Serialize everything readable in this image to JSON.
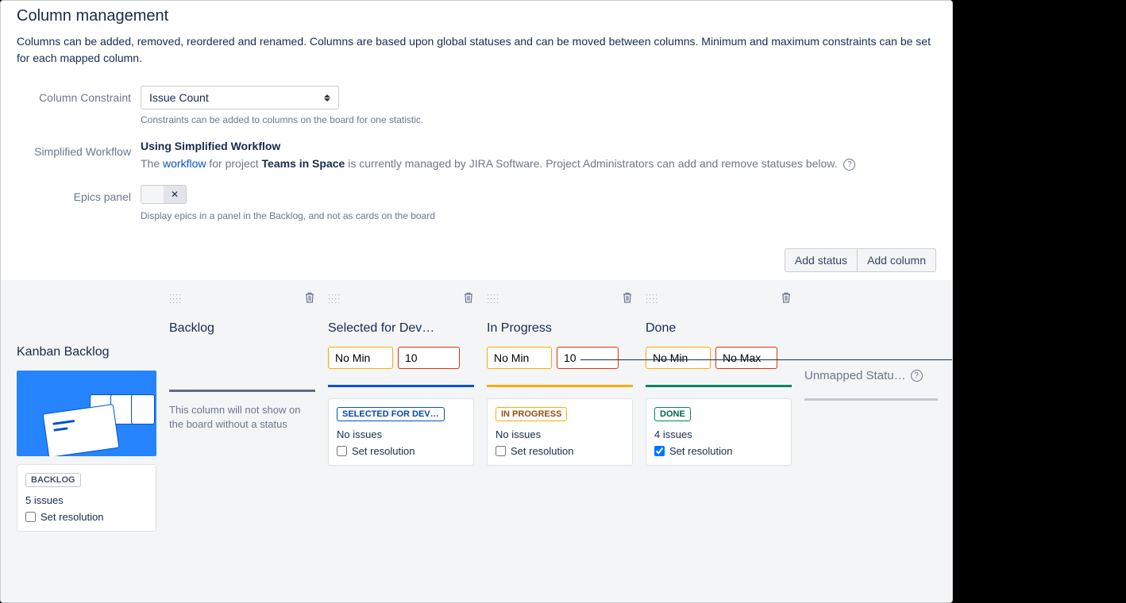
{
  "header": {
    "title": "Column management",
    "description": "Columns can be added, removed, reordered and renamed. Columns are based upon global statuses and can be moved between columns. Minimum and maximum constraints can be set for each mapped column."
  },
  "form": {
    "constraint_label": "Column Constraint",
    "constraint_value": "Issue Count",
    "constraint_hint": "Constraints can be added to columns on the board for one statistic.",
    "workflow_label": "Simplified Workflow",
    "workflow_title": "Using Simplified Workflow",
    "workflow_desc_pre": "The ",
    "workflow_link": "workflow",
    "workflow_desc_mid": " for project ",
    "workflow_project": "Teams in Space",
    "workflow_desc_post": " is currently managed by JIRA Software. Project Administrators can add and remove statuses below.",
    "epics_label": "Epics panel",
    "epics_hint": "Display epics in a panel in the Backlog, and not as cards on the board"
  },
  "actions": {
    "add_status": "Add status",
    "add_column": "Add column"
  },
  "kanban": {
    "title": "Kanban Backlog",
    "status_label": "BACKLOG",
    "issue_count": "5 issues",
    "set_resolution": "Set resolution",
    "resolution_checked": false
  },
  "columns": [
    {
      "title": "Backlog",
      "min": null,
      "max": null,
      "divider_color": "#5e6c84",
      "note": "This column will not show on the board without a status",
      "status": null
    },
    {
      "title": "Selected for Dev…",
      "min": "No Min",
      "max": "10",
      "divider_color": "#0052cc",
      "note": null,
      "status": {
        "label": "SELECTED FOR DEV…",
        "lozenge_class": "lozenge-blue",
        "issue_count": "No issues",
        "set_resolution": "Set resolution",
        "resolution_checked": false
      }
    },
    {
      "title": "In Progress",
      "min": "No Min",
      "max": "10",
      "divider_color": "#ffab00",
      "note": null,
      "status": {
        "label": "IN PROGRESS",
        "lozenge_class": "lozenge-yellow",
        "issue_count": "No issues",
        "set_resolution": "Set resolution",
        "resolution_checked": false
      }
    },
    {
      "title": "Done",
      "min": "No Min",
      "max": "No Max",
      "divider_color": "#00875a",
      "note": null,
      "status": {
        "label": "DONE",
        "lozenge_class": "lozenge-green",
        "issue_count": "4 issues",
        "set_resolution": "Set resolution",
        "resolution_checked": true
      }
    }
  ],
  "unmapped": {
    "title": "Unmapped Statu…"
  },
  "colors": {
    "min_border": "#ffab00",
    "max_border": "#de350b"
  }
}
